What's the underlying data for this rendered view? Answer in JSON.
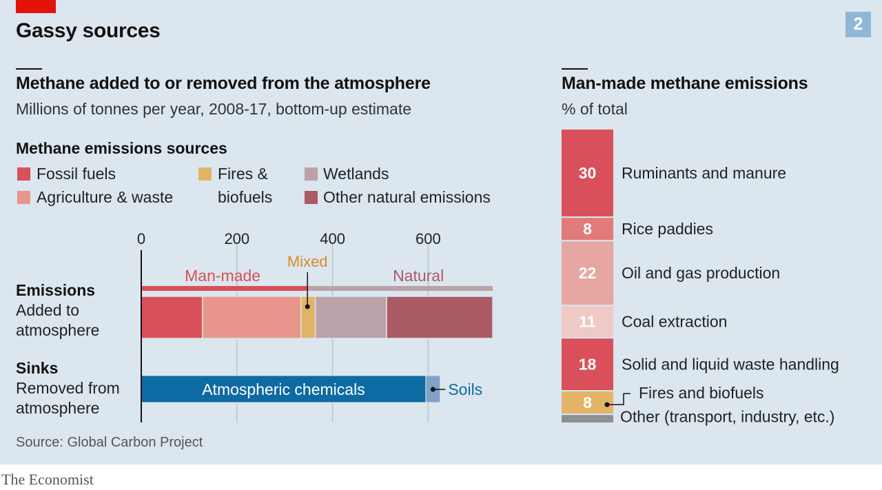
{
  "header": {
    "title": "Gassy sources",
    "badge": "2"
  },
  "left_chart": {
    "title": "Methane added to or removed from the atmosphere",
    "subtitle": "Millions of tonnes per year, 2008-17, bottom-up estimate",
    "legend_title": "Methane emissions sources",
    "legend": [
      {
        "label": "Fossil fuels",
        "color": "#d9505a"
      },
      {
        "label": "Agriculture & waste",
        "color": "#e8968b"
      },
      {
        "label_line1": "Fires &",
        "label_line2": "biofuels",
        "color": "#e3b468"
      },
      {
        "label": "Wetlands",
        "color": "#bba2a8"
      },
      {
        "label": "Other natural emissions",
        "color": "#ab5b66"
      }
    ],
    "rows": {
      "emissions_title": "Emissions",
      "emissions_desc_1": "Added to",
      "emissions_desc_2": "atmosphere",
      "sinks_title": "Sinks",
      "sinks_desc_1": "Removed from",
      "sinks_desc_2": "atmosphere"
    },
    "bracket_labels": {
      "man_made": "Man-made",
      "mixed": "Mixed",
      "natural": "Natural"
    },
    "source": "Source: Global Carbon Project"
  },
  "right_chart": {
    "title": "Man-made methane emissions",
    "subtitle": "% of total"
  },
  "chart_data": [
    {
      "type": "bar",
      "orientation": "horizontal-stacked",
      "xlim": [
        0,
        740
      ],
      "x_ticks": [
        "0",
        "200",
        "400",
        "600"
      ],
      "x_tick_values": [
        0,
        200,
        400,
        600
      ],
      "grid": true,
      "emissions": {
        "segments": [
          {
            "name": "Fossil fuels",
            "value": 128,
            "color": "#d9505a",
            "group": "Man-made"
          },
          {
            "name": "Agriculture & waste",
            "value": 206,
            "color": "#e8968b",
            "group": "Man-made"
          },
          {
            "name": "Fires & biofuels",
            "value": 30,
            "color": "#e3b468",
            "group": "Mixed"
          },
          {
            "name": "Wetlands",
            "value": 149,
            "color": "#bba2a8",
            "group": "Natural"
          },
          {
            "name": "Other natural emissions",
            "value": 222,
            "color": "#ab5b66",
            "group": "Natural"
          }
        ],
        "groups": [
          {
            "name": "Man-made",
            "from": 0,
            "to": 349,
            "color": "#d9505a"
          },
          {
            "name": "Natural",
            "from": 349,
            "to": 735,
            "color": "#bba2a8"
          }
        ]
      },
      "sinks": {
        "segments": [
          {
            "name": "Atmospheric chemicals",
            "value": 595,
            "color": "#0d6aa3",
            "label": "Atmospheric chemicals"
          },
          {
            "name": "Soils",
            "value": 30,
            "color": "#7ea3c6",
            "label": "Soils"
          }
        ]
      }
    },
    {
      "type": "bar",
      "orientation": "vertical-stacked",
      "unit": "% of total",
      "segments": [
        {
          "label": "Ruminants and manure",
          "value": 30,
          "value_label": "30",
          "color": "#d9505a"
        },
        {
          "label": "Rice paddies",
          "value": 8,
          "value_label": "8",
          "color": "#e17a79"
        },
        {
          "label": "Oil and gas production",
          "value": 22,
          "value_label": "22",
          "color": "#e6a6a1"
        },
        {
          "label": "Coal extraction",
          "value": 11,
          "value_label": "11",
          "color": "#efc9c6"
        },
        {
          "label": "Solid and liquid waste handling",
          "value": 18,
          "value_label": "18",
          "color": "#d9505a"
        },
        {
          "label": "Fires and biofuels",
          "value": 8,
          "value_label": "8",
          "color": "#e3b468"
        },
        {
          "label": "Other (transport, industry, etc.)",
          "value": 3,
          "value_label": "",
          "color": "#8c9196"
        }
      ]
    }
  ],
  "footer": {
    "brand": "The Economist"
  }
}
